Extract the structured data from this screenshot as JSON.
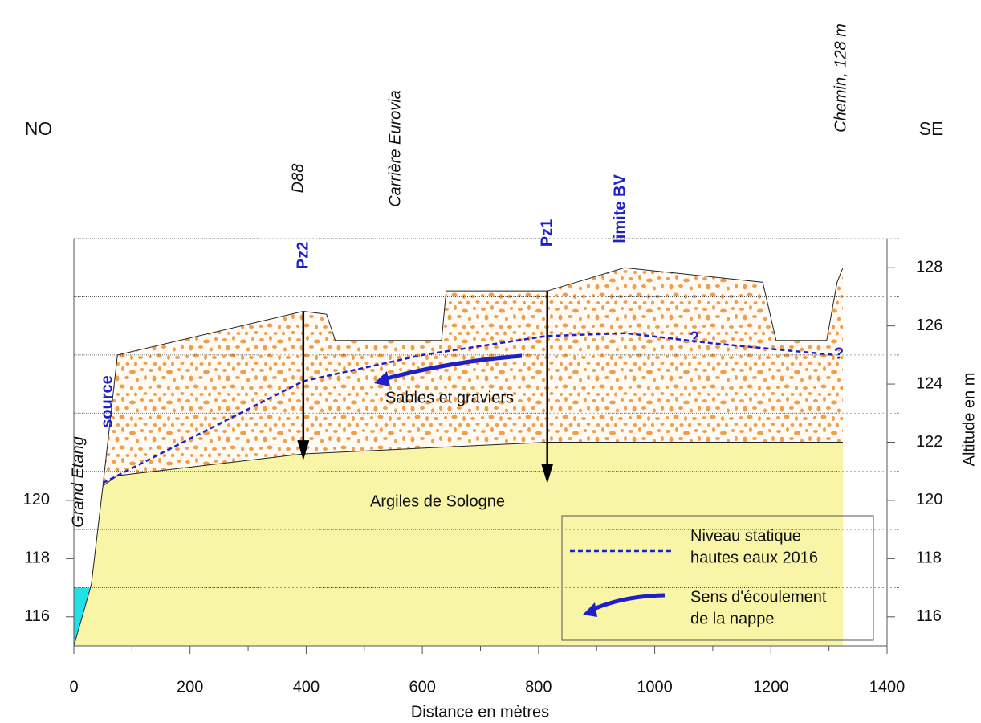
{
  "chart_data": {
    "type": "cross-section",
    "xlabel": "Distance en mètres",
    "ylabel": "Altitude en m",
    "left_label": "NO",
    "right_label": "SE",
    "xlim": [
      0,
      1400
    ],
    "ylim": [
      115,
      129
    ],
    "xticks": [
      0,
      200,
      400,
      600,
      800,
      1000,
      1200,
      1400
    ],
    "yticks": [
      116,
      118,
      120
    ],
    "y2ticks": [
      116,
      118,
      120,
      122,
      124,
      126,
      128
    ],
    "grid_levels": [
      117,
      119,
      121,
      123,
      125,
      127,
      129
    ],
    "ground": {
      "x": [
        0,
        30,
        50,
        75,
        395,
        435,
        450,
        633,
        641,
        815,
        948,
        1186,
        1209,
        1296,
        1314,
        1324
      ],
      "y": [
        115,
        117.1,
        120.5,
        125,
        126.5,
        126.4,
        125.5,
        125.5,
        127.2,
        127.2,
        128,
        127.5,
        125.5,
        125.5,
        127.5,
        128
      ]
    },
    "clay_top": {
      "x": [
        50,
        75,
        395,
        815,
        1324
      ],
      "y": [
        120.5,
        120.85,
        121.6,
        122,
        122
      ]
    },
    "water_table": {
      "name": [
        "Niveau statique",
        "hautes eaux 2016"
      ],
      "color": "#1f1fc8",
      "x": [
        50,
        395,
        600,
        813,
        950,
        1100,
        1310
      ],
      "y": [
        120.6,
        124.1,
        125.0,
        125.65,
        125.75,
        125.4,
        125.0
      ]
    },
    "flow_direction": [
      "Sens d'écoulement",
      "de la nappe"
    ],
    "layers": [
      "Sables et graviers",
      "Argiles de Sologne"
    ],
    "wells": [
      {
        "label": "Pz2",
        "x": 395,
        "top": 126.5,
        "bottom": 121.5
      },
      {
        "label": "Pz1",
        "x": 815,
        "top": 127.2,
        "bottom": 120.7
      }
    ],
    "annotations": [
      "Grand Etang",
      "source",
      "D88",
      "Carrière Eurovia",
      "limite BV",
      "Chemin, 128 m",
      "?",
      "?"
    ]
  }
}
